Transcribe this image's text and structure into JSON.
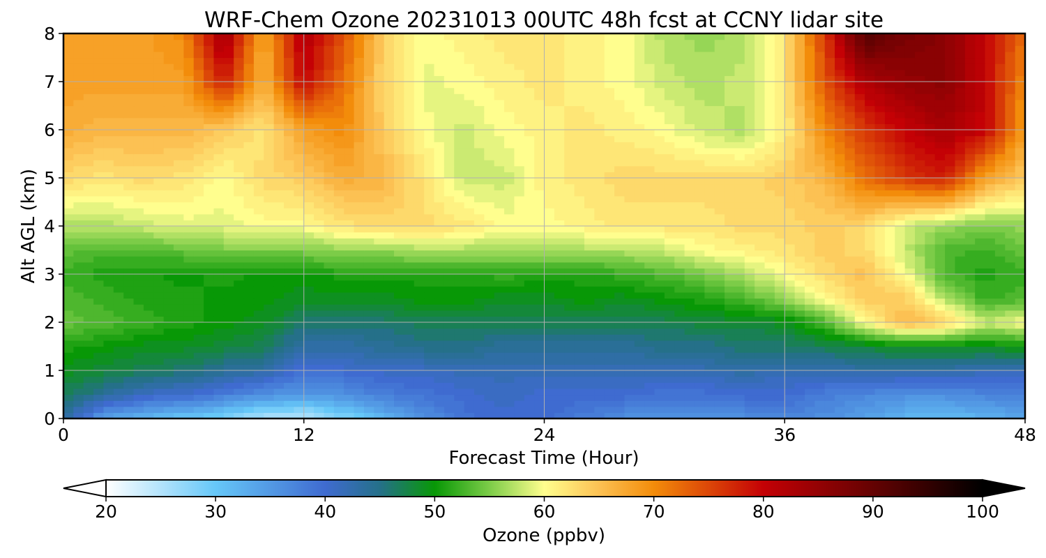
{
  "chart_data": {
    "type": "heatmap",
    "title": "WRF-Chem Ozone  20231013 00UTC 48h fcst at CCNY lidar site",
    "xlabel": "Forecast Time (Hour)",
    "ylabel": "Alt AGL (km)",
    "xlim": [
      0,
      48
    ],
    "ylim": [
      0,
      8
    ],
    "xticks": [
      0,
      12,
      24,
      36,
      48
    ],
    "yticks": [
      0,
      1,
      2,
      3,
      4,
      5,
      6,
      7,
      8
    ],
    "grid": true,
    "x": [
      0,
      2,
      4,
      6,
      8,
      10,
      12,
      14,
      16,
      18,
      20,
      22,
      24,
      26,
      28,
      30,
      32,
      34,
      36,
      38,
      40,
      42,
      44,
      46,
      48
    ],
    "y": [
      0,
      0.5,
      1,
      1.5,
      2,
      2.5,
      3,
      3.5,
      4,
      5,
      6,
      7,
      8
    ],
    "values": [
      [
        44,
        34,
        32,
        30,
        28,
        25,
        24,
        28,
        32,
        36,
        39,
        40,
        40,
        38,
        36,
        35,
        35,
        36,
        37,
        36,
        34,
        32,
        31,
        32,
        34
      ],
      [
        47,
        44,
        41,
        40,
        38,
        36,
        35,
        36,
        38,
        39,
        40,
        41,
        40,
        40,
        40,
        39,
        39,
        40,
        40,
        38,
        37,
        36,
        36,
        37,
        38
      ],
      [
        49,
        48,
        47,
        46,
        44,
        43,
        39,
        40,
        41,
        41,
        42,
        42,
        42,
        42,
        42,
        42,
        42,
        43,
        42,
        42,
        43,
        43,
        43,
        42,
        42
      ],
      [
        51,
        50,
        49,
        49,
        48,
        47,
        43,
        43,
        44,
        45,
        45,
        44,
        44,
        44,
        44,
        45,
        45,
        46,
        46,
        47,
        48,
        49,
        49,
        49,
        50
      ],
      [
        54,
        53,
        52,
        51,
        50,
        49,
        46,
        46,
        46,
        47,
        47,
        47,
        47,
        47,
        47,
        47,
        48,
        48,
        49,
        53,
        60,
        66,
        64,
        58,
        60
      ],
      [
        53,
        52,
        51,
        51,
        50,
        50,
        49,
        49,
        49,
        50,
        50,
        49,
        49,
        50,
        49,
        50,
        51,
        53,
        56,
        60,
        64,
        64,
        57,
        52,
        53
      ],
      [
        52,
        51,
        51,
        50,
        51,
        50,
        50,
        51,
        51,
        51,
        51,
        52,
        51,
        51,
        52,
        53,
        55,
        57,
        60,
        63,
        65,
        60,
        53,
        51,
        52
      ],
      [
        54,
        53,
        53,
        54,
        55,
        55,
        55,
        56,
        56,
        57,
        57,
        56,
        57,
        57,
        57,
        58,
        60,
        61,
        62,
        64,
        63,
        58,
        53,
        52,
        54
      ],
      [
        57,
        57,
        58,
        59,
        59,
        60,
        60,
        62,
        63,
        63,
        62,
        60,
        60,
        61,
        62,
        62,
        62,
        63,
        63,
        64,
        63,
        58,
        56,
        55,
        56
      ],
      [
        63,
        62,
        63,
        62,
        60,
        63,
        64,
        67,
        66,
        62,
        58,
        58,
        61,
        62,
        63,
        63,
        63,
        63,
        64,
        66,
        72,
        76,
        78,
        68,
        64
      ],
      [
        67,
        66,
        66,
        66,
        64,
        62,
        68,
        70,
        64,
        60,
        58,
        60,
        61,
        62,
        61,
        60,
        58,
        57,
        61,
        70,
        76,
        80,
        83,
        80,
        68
      ],
      [
        68,
        68,
        68,
        68,
        78,
        66,
        80,
        72,
        63,
        59,
        60,
        61,
        62,
        61,
        60,
        58,
        57,
        58,
        62,
        74,
        82,
        85,
        86,
        80,
        70
      ],
      [
        68,
        68,
        68,
        70,
        84,
        67,
        82,
        74,
        64,
        60,
        61,
        62,
        62,
        61,
        60,
        57,
        56,
        57,
        62,
        76,
        92,
        88,
        86,
        80,
        72
      ]
    ],
    "colorbar": {
      "label": "Ozone  (ppbv)",
      "min": 20,
      "max": 100,
      "ticks": [
        20,
        30,
        40,
        50,
        60,
        70,
        80,
        90,
        100
      ],
      "extend": "both",
      "stops": [
        {
          "v": 20,
          "c": "#ffffff"
        },
        {
          "v": 30,
          "c": "#66c7f8"
        },
        {
          "v": 40,
          "c": "#3f6bd0"
        },
        {
          "v": 45,
          "c": "#257089"
        },
        {
          "v": 50,
          "c": "#089806"
        },
        {
          "v": 55,
          "c": "#7ccc48"
        },
        {
          "v": 60,
          "c": "#fffe8e"
        },
        {
          "v": 65,
          "c": "#fcc153"
        },
        {
          "v": 70,
          "c": "#f38c0a"
        },
        {
          "v": 80,
          "c": "#c40105"
        },
        {
          "v": 90,
          "c": "#640202"
        },
        {
          "v": 100,
          "c": "#000000"
        }
      ]
    }
  }
}
